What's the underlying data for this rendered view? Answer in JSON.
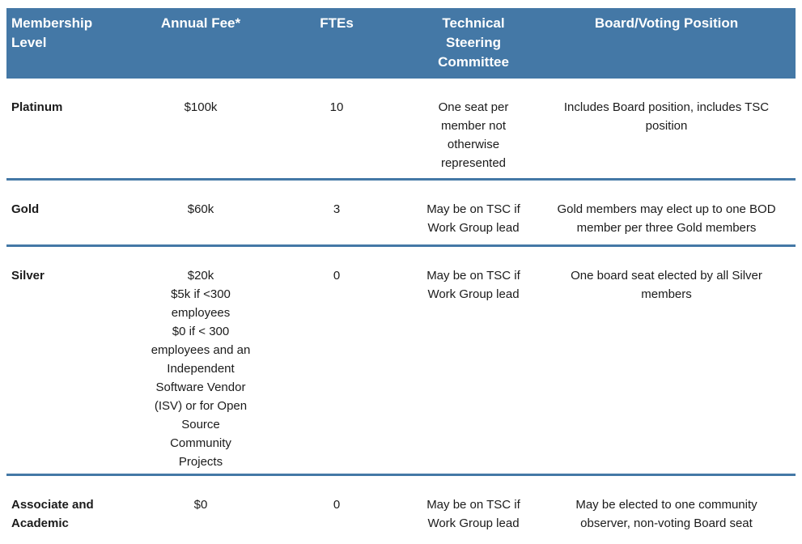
{
  "table": {
    "accent_color": "#4478a6",
    "text_color": "#1b1b1b",
    "header_text_color": "#ffffff",
    "columns": [
      {
        "label": "Membership\nLevel"
      },
      {
        "label": "Annual Fee*"
      },
      {
        "label": "FTEs"
      },
      {
        "label": "Technical\nSteering\nCommittee"
      },
      {
        "label": "Board/Voting Position"
      }
    ],
    "rows": [
      {
        "level": "Platinum",
        "fee": "$100k",
        "ftes": "10",
        "tsc": "One seat per\nmember not\notherwise\nrepresented",
        "board": "Includes Board position, includes TSC\nposition"
      },
      {
        "level": "Gold",
        "fee": "$60k",
        "ftes": "3",
        "tsc": "May be on TSC if\nWork Group lead",
        "board": "Gold members may elect up to one BOD\nmember per three Gold members"
      },
      {
        "level": "Silver",
        "fee": "$20k\n$5k if <300\nemployees\n$0 if < 300\nemployees and an\nIndependent\nSoftware Vendor\n(ISV) or for Open\nSource\nCommunity\nProjects",
        "ftes": "0",
        "tsc": "May be on TSC if\nWork Group lead",
        "board": "One board seat elected by all Silver\nmembers"
      },
      {
        "level": "Associate and\nAcademic",
        "fee": "$0",
        "ftes": "0",
        "tsc": "May be on TSC if\nWork Group lead",
        "board": "May be elected to one community\nobserver, non-voting Board seat"
      }
    ]
  }
}
